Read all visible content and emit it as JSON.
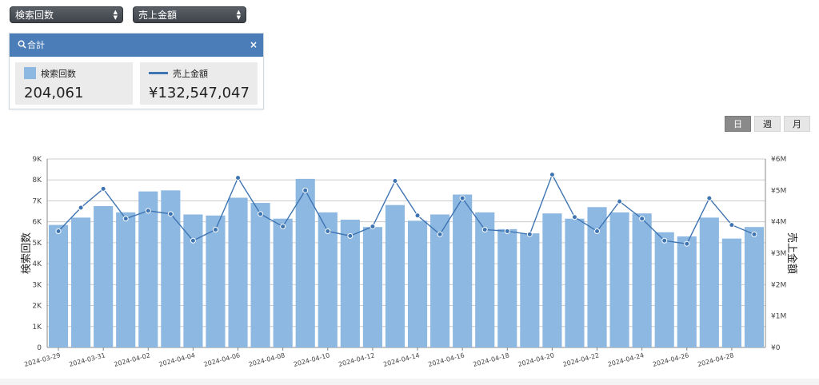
{
  "controls": {
    "metric1": "検索回数",
    "metric2": "売上金額"
  },
  "panel": {
    "title": "合計",
    "close": "×",
    "searches": {
      "label": "検索回数",
      "value": "204,061"
    },
    "sales": {
      "label": "売上金額",
      "value": "¥132,547,047"
    }
  },
  "period_toggle": {
    "day": "日",
    "week": "週",
    "month": "月",
    "active": "day"
  },
  "colors": {
    "bar": "#8db8e2",
    "line": "#3e74b2",
    "header": "#4b7db8"
  },
  "chart_data": {
    "type": "bar",
    "categories": [
      "2024-03-29",
      "2024-03-30",
      "2024-03-31",
      "2024-04-01",
      "2024-04-02",
      "2024-04-03",
      "2024-04-04",
      "2024-04-05",
      "2024-04-06",
      "2024-04-07",
      "2024-04-08",
      "2024-04-09",
      "2024-04-10",
      "2024-04-11",
      "2024-04-12",
      "2024-04-13",
      "2024-04-14",
      "2024-04-15",
      "2024-04-16",
      "2024-04-17",
      "2024-04-18",
      "2024-04-19",
      "2024-04-20",
      "2024-04-21",
      "2024-04-22",
      "2024-04-23",
      "2024-04-24",
      "2024-04-25",
      "2024-04-26",
      "2024-04-27",
      "2024-04-28",
      "2024-04-29"
    ],
    "x_tick_labels": [
      "2024-03-29",
      "2024-03-31",
      "2024-04-02",
      "2024-04-04",
      "2024-04-06",
      "2024-04-08",
      "2024-04-10",
      "2024-04-12",
      "2024-04-14",
      "2024-04-16",
      "2024-04-18",
      "2024-04-20",
      "2024-04-22",
      "2024-04-24",
      "2024-04-26",
      "2024-04-28"
    ],
    "series": [
      {
        "name": "検索回数",
        "type": "bar",
        "axis": "left",
        "values": [
          5850,
          6200,
          6750,
          6450,
          7450,
          7500,
          6350,
          6300,
          7150,
          6900,
          6150,
          8050,
          6450,
          6100,
          5750,
          6800,
          6050,
          6350,
          7300,
          6450,
          5650,
          5450,
          6400,
          6150,
          6700,
          6450,
          6400,
          5500,
          5300,
          6200,
          5200,
          5750
        ]
      },
      {
        "name": "売上金額",
        "type": "line",
        "axis": "right",
        "values": [
          3700000,
          4450000,
          5050000,
          4100000,
          4350000,
          4250000,
          3400000,
          3750000,
          5400000,
          4250000,
          3850000,
          5000000,
          3700000,
          3550000,
          3850000,
          5300000,
          4200000,
          3600000,
          4750000,
          3750000,
          3700000,
          3600000,
          5500000,
          4150000,
          3700000,
          4650000,
          4100000,
          3400000,
          3300000,
          4750000,
          3900000,
          3600000
        ]
      }
    ],
    "ylabel_left": "検索回数",
    "ylabel_right": "売上金額",
    "ylim_left": [
      0,
      9000
    ],
    "ylim_right": [
      0,
      6000000
    ],
    "left_ticks": [
      "0",
      "1K",
      "2K",
      "3K",
      "4K",
      "5K",
      "6K",
      "7K",
      "8K",
      "9K"
    ],
    "right_ticks": [
      "¥0",
      "¥1M",
      "¥2M",
      "¥3M",
      "¥4M",
      "¥5M",
      "¥6M"
    ],
    "grid": true
  }
}
